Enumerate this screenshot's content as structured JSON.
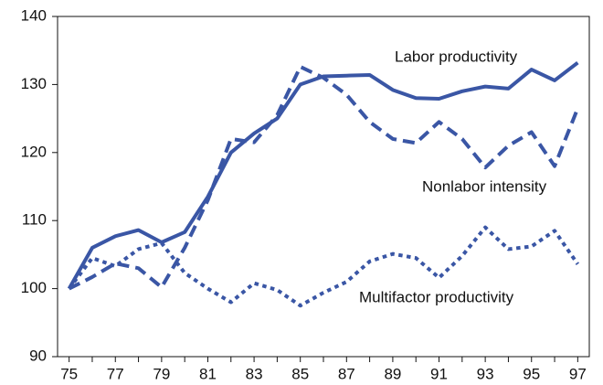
{
  "chart_data": {
    "type": "line",
    "categories": [
      "75",
      null,
      "77",
      null,
      "79",
      null,
      "81",
      null,
      "83",
      null,
      "85",
      null,
      "87",
      null,
      "89",
      null,
      "91",
      null,
      "93",
      null,
      "95",
      null,
      "97"
    ],
    "series": [
      {
        "name": "Labor productivity",
        "color": "#3a56a5",
        "style": "solid",
        "values": [
          100,
          106,
          107.7,
          108.6,
          106.8,
          108.3,
          113.5,
          120,
          122.8,
          125,
          130,
          131.2,
          131.3,
          131.4,
          129.2,
          128,
          127.9,
          129,
          129.7,
          129.4,
          132.2,
          130.6,
          133.2
        ]
      },
      {
        "name": "Nonlabor intensity",
        "color": "#3a56a5",
        "style": "dashed",
        "values": [
          100,
          101.7,
          103.7,
          103,
          100.2,
          106,
          113,
          122,
          121.5,
          125.5,
          132.6,
          131,
          128.5,
          124.5,
          122,
          121.4,
          124.5,
          122,
          117.8,
          121,
          123,
          118,
          126.5
        ]
      },
      {
        "name": "Multifactor productivity",
        "color": "#3a56a5",
        "style": "dotted",
        "values": [
          100,
          104.5,
          103.3,
          105.8,
          106.7,
          102.3,
          100,
          98,
          100.8,
          99.8,
          97.5,
          99.4,
          101,
          104,
          105.1,
          104.5,
          101.6,
          104.8,
          109,
          105.8,
          106.2,
          108.5,
          103.6
        ]
      }
    ],
    "ylim": [
      90,
      140
    ],
    "yticks": [
      90,
      100,
      110,
      120,
      130,
      140
    ]
  }
}
